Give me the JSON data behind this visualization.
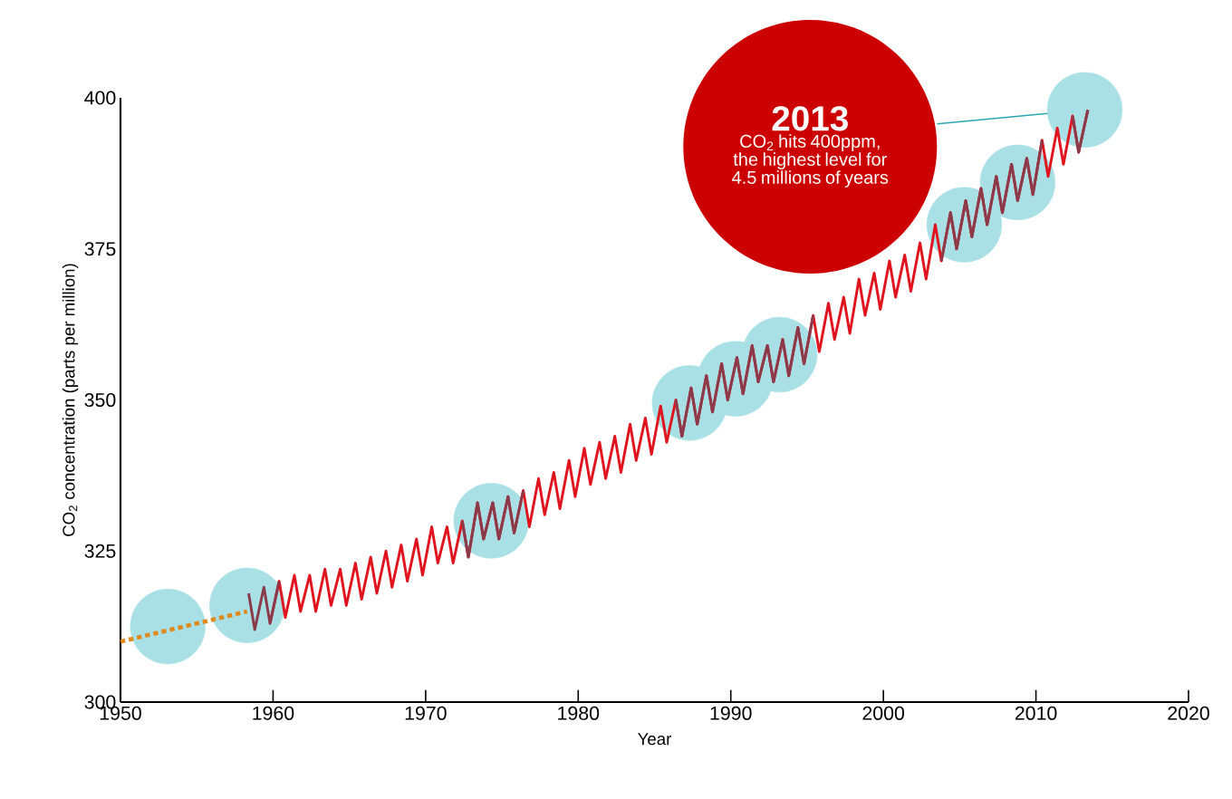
{
  "chart_data": {
    "type": "line",
    "xlabel": "Year",
    "ylabel": "CO$_{2}$ concentration (parts per million)",
    "xlim": [
      1950,
      2020
    ],
    "ylim": [
      300,
      400
    ],
    "xticks": [
      1950,
      1960,
      1970,
      1980,
      1990,
      2000,
      2010,
      2020
    ],
    "yticks": [
      300,
      325,
      350,
      375,
      400
    ],
    "series": [
      {
        "type": "scatter",
        "color": "#a8e0e6",
        "x": [
          1953.1,
          1958.3,
          1974.3,
          1987.3,
          1990.3,
          1993.2,
          2005.3,
          2008.8,
          2013.2
        ],
        "values": [
          312.5,
          316,
          330,
          349.5,
          353.5,
          357.5,
          379,
          386,
          398
        ]
      },
      {
        "type": "line",
        "line_style": "dotted",
        "color": "#e08a1e",
        "x": [
          1950,
          1958.3
        ],
        "values": [
          310,
          315
        ]
      },
      {
        "color": "#e0141e",
        "x": [
          1959.8,
          1960.4,
          1960.8,
          1961.4,
          1961.8,
          1962.4,
          1962.8,
          1963.4,
          1963.8,
          1964.4,
          1964.8,
          1965.4,
          1965.8,
          1966.4,
          1966.8,
          1967.4,
          1967.8,
          1968.4,
          1968.8,
          1969.4,
          1969.8,
          1970.4,
          1970.8,
          1971.4,
          1971.8,
          1972.4,
          1972.8,
          1973.4,
          1973.8,
          1974.4,
          1974.8,
          1975.4,
          1975.8,
          1976.4,
          1976.8,
          1977.4,
          1977.8,
          1978.4,
          1978.8,
          1979.4,
          1979.8,
          1980.4,
          1980.8,
          1981.4,
          1981.8,
          1982.4,
          1982.8,
          1983.4,
          1983.8,
          1984.4,
          1984.8,
          1985.4,
          1985.8,
          1986.4,
          1986.8,
          1987.4,
          1987.8,
          1988.4,
          1988.8,
          1989.4,
          1989.8,
          1990.4,
          1990.8,
          1991.4,
          1991.8,
          1992.4,
          1992.8,
          1993.4,
          1993.8,
          1994.4,
          1994.8,
          1995.4,
          1995.8,
          1996.4,
          1996.8,
          1997.4,
          1997.8,
          1998.4,
          1998.8,
          1999.4,
          1999.8,
          2000.4,
          2000.8,
          2001.4,
          2001.8,
          2002.4,
          2002.8,
          2003.4,
          2003.8,
          2004.4,
          2004.8,
          2005.4,
          2005.8,
          2006.4,
          2006.8,
          2007.4,
          2007.8,
          2008.4,
          2008.8,
          2009.4,
          2009.8,
          2010.4,
          2010.8,
          2011.4,
          2011.8,
          2012.4,
          2012.8,
          2013.4
        ],
        "values": [
          313,
          320,
          314,
          321,
          315,
          321,
          315,
          322,
          316,
          322,
          316,
          323,
          317,
          324,
          318,
          325,
          319,
          326,
          320,
          327,
          321,
          329,
          323,
          329,
          323,
          330,
          324,
          333,
          327,
          333,
          327,
          334,
          328,
          335,
          329,
          337,
          331,
          338,
          332,
          340,
          334,
          342,
          336,
          343,
          337,
          344,
          338,
          346,
          340,
          347,
          341,
          349,
          343,
          350,
          344,
          352,
          346,
          354,
          348,
          356,
          350,
          357,
          351,
          359,
          353,
          359,
          353,
          360,
          354,
          362,
          356,
          364,
          358,
          366,
          360,
          367,
          361,
          370,
          364,
          371,
          365,
          373,
          367,
          374,
          368,
          376,
          370,
          379,
          373,
          381,
          375,
          383,
          377,
          385,
          379,
          387,
          381,
          389,
          383,
          390,
          384,
          393,
          387,
          395,
          389,
          397,
          391,
          398
        ]
      },
      {
        "color": "#8b3a4a",
        "x": [
          1958.4,
          1958.8,
          1959.4,
          1959.8,
          1960.4,
          1961,
          1972.4,
          1972.8,
          1973.4,
          1973.8,
          1974.4,
          1974.8,
          1975.4,
          1975.8,
          1976.4,
          1980,
          1986.4,
          1986.8,
          1987.4,
          1987.8,
          1988.4,
          1988.8,
          1989.4,
          1989.8,
          1990.4,
          1990.8,
          1991.4,
          1991.8,
          1992.4,
          1992.8,
          1993.4,
          1993.8,
          1994.4,
          1994.8,
          1995.4,
          2000,
          2003.8,
          2004.4,
          2004.8,
          2005.4,
          2005.8,
          2006.4,
          2006.8,
          2007.4,
          2007.8,
          2008.4,
          2008.8,
          2009.4,
          2009.8,
          2010.4,
          2011,
          2012.4,
          2012.8,
          2013.4
        ],
        "values": [
          318,
          312,
          319,
          313,
          320,
          null,
          330,
          324,
          333,
          327,
          333,
          327,
          334,
          328,
          335,
          null,
          350,
          344,
          352,
          346,
          354,
          348,
          356,
          350,
          357,
          351,
          359,
          353,
          359,
          353,
          360,
          354,
          362,
          356,
          364,
          null,
          373,
          381,
          375,
          383,
          377,
          385,
          379,
          387,
          381,
          389,
          383,
          390,
          384,
          393,
          null,
          397,
          391,
          398
        ]
      }
    ],
    "annotations": [
      "2013",
      "CO$_{2}$ hits 400ppm, the highest level for 4.5 millions of years"
    ]
  }
}
